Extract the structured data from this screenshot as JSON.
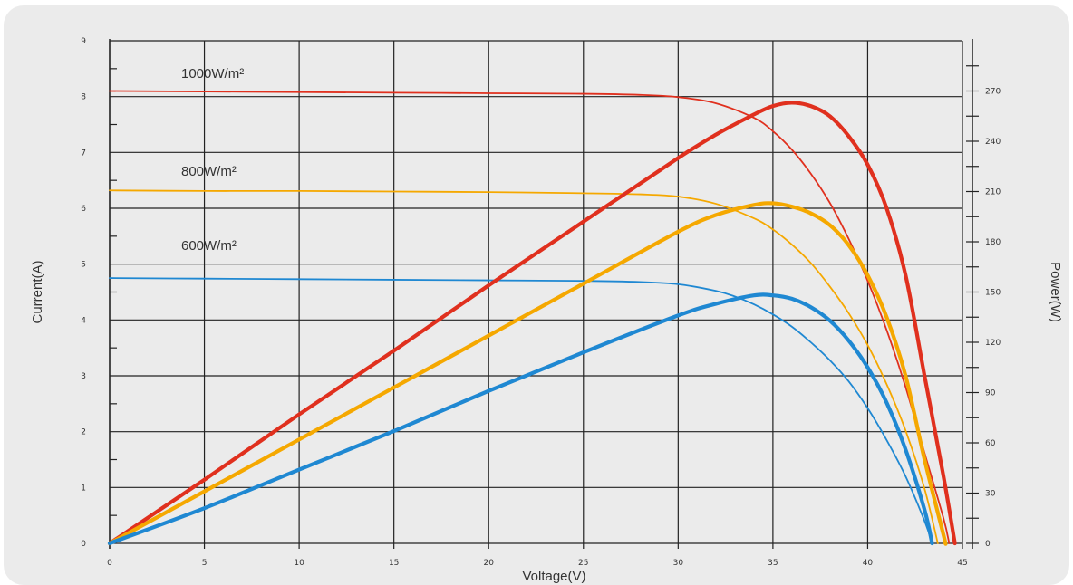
{
  "chart_data": {
    "type": "line",
    "title": "",
    "xlabel": "Voltage(V)",
    "ylabel": "Current(A)",
    "y2label": "Power(W)",
    "xlim": [
      0,
      45
    ],
    "ylim": [
      0,
      9
    ],
    "y2lim": [
      0,
      300
    ],
    "x_ticks": [
      0,
      5,
      10,
      15,
      20,
      25,
      30,
      35,
      40,
      45
    ],
    "y_ticks": [
      0,
      1,
      2,
      3,
      4,
      5,
      6,
      7,
      8,
      9
    ],
    "y2_ticks": [
      0,
      30,
      60,
      90,
      120,
      150,
      180,
      210,
      240,
      270
    ],
    "grid": true,
    "curve_labels": [
      "1000W/m²",
      "800W/m²",
      "600W/m²"
    ],
    "series": [
      {
        "irradiance": "1000W/m²",
        "kind": "current",
        "axis": "left",
        "color": "#e0301e",
        "points": [
          [
            0,
            8.1
          ],
          [
            5,
            8.09
          ],
          [
            10,
            8.08
          ],
          [
            15,
            8.07
          ],
          [
            20,
            8.06
          ],
          [
            25,
            8.05
          ],
          [
            28,
            8.03
          ],
          [
            30,
            7.99
          ],
          [
            32,
            7.88
          ],
          [
            34,
            7.62
          ],
          [
            35,
            7.38
          ],
          [
            36,
            7.05
          ],
          [
            37,
            6.62
          ],
          [
            38,
            6.1
          ],
          [
            39,
            5.45
          ],
          [
            40,
            4.7
          ],
          [
            41,
            3.82
          ],
          [
            42,
            2.8
          ],
          [
            43,
            1.62
          ],
          [
            44,
            0.45
          ],
          [
            44.3,
            0
          ]
        ]
      },
      {
        "irradiance": "1000W/m²",
        "kind": "power",
        "axis": "right",
        "color": "#e0301e",
        "points": [
          [
            0,
            0
          ],
          [
            5,
            38
          ],
          [
            10,
            77
          ],
          [
            15,
            115
          ],
          [
            20,
            154
          ],
          [
            25,
            192
          ],
          [
            30,
            230
          ],
          [
            32,
            244
          ],
          [
            34,
            256
          ],
          [
            35,
            261
          ],
          [
            36,
            263
          ],
          [
            37,
            261
          ],
          [
            38,
            255
          ],
          [
            39,
            243
          ],
          [
            40,
            226
          ],
          [
            41,
            200
          ],
          [
            42,
            160
          ],
          [
            43,
            100
          ],
          [
            44,
            40
          ],
          [
            44.6,
            0
          ]
        ]
      },
      {
        "irradiance": "800W/m²",
        "kind": "current",
        "axis": "left",
        "color": "#f5a800",
        "points": [
          [
            0,
            6.32
          ],
          [
            5,
            6.31
          ],
          [
            10,
            6.31
          ],
          [
            15,
            6.3
          ],
          [
            20,
            6.29
          ],
          [
            25,
            6.27
          ],
          [
            28,
            6.25
          ],
          [
            30,
            6.21
          ],
          [
            32,
            6.08
          ],
          [
            34,
            5.82
          ],
          [
            35,
            5.62
          ],
          [
            36,
            5.35
          ],
          [
            37,
            5.02
          ],
          [
            38,
            4.6
          ],
          [
            39,
            4.12
          ],
          [
            40,
            3.55
          ],
          [
            41,
            2.85
          ],
          [
            42,
            2.02
          ],
          [
            43,
            0.98
          ],
          [
            43.7,
            0
          ]
        ]
      },
      {
        "irradiance": "800W/m²",
        "kind": "power",
        "axis": "right",
        "color": "#f5a800",
        "points": [
          [
            0,
            0
          ],
          [
            5,
            31
          ],
          [
            10,
            62
          ],
          [
            15,
            93
          ],
          [
            20,
            124
          ],
          [
            25,
            155
          ],
          [
            30,
            186
          ],
          [
            32,
            196
          ],
          [
            34,
            202
          ],
          [
            35,
            203
          ],
          [
            36,
            201
          ],
          [
            37,
            197
          ],
          [
            38,
            190
          ],
          [
            39,
            178
          ],
          [
            40,
            160
          ],
          [
            41,
            135
          ],
          [
            42,
            100
          ],
          [
            43,
            50
          ],
          [
            44,
            5
          ],
          [
            44.1,
            0
          ]
        ]
      },
      {
        "irradiance": "600W/m²",
        "kind": "current",
        "axis": "left",
        "color": "#1f88d2",
        "points": [
          [
            0,
            4.75
          ],
          [
            5,
            4.74
          ],
          [
            10,
            4.73
          ],
          [
            15,
            4.72
          ],
          [
            20,
            4.71
          ],
          [
            25,
            4.7
          ],
          [
            28,
            4.68
          ],
          [
            30,
            4.64
          ],
          [
            32,
            4.52
          ],
          [
            33,
            4.42
          ],
          [
            34,
            4.28
          ],
          [
            35,
            4.1
          ],
          [
            36,
            3.88
          ],
          [
            37,
            3.6
          ],
          [
            38,
            3.28
          ],
          [
            39,
            2.9
          ],
          [
            40,
            2.42
          ],
          [
            41,
            1.85
          ],
          [
            42,
            1.2
          ],
          [
            43,
            0.4
          ],
          [
            43.4,
            0
          ]
        ]
      },
      {
        "irradiance": "600W/m²",
        "kind": "power",
        "axis": "right",
        "color": "#1f88d2",
        "points": [
          [
            0,
            0
          ],
          [
            5,
            21
          ],
          [
            10,
            44
          ],
          [
            15,
            67
          ],
          [
            20,
            91
          ],
          [
            25,
            114
          ],
          [
            30,
            136
          ],
          [
            32,
            143
          ],
          [
            34,
            148
          ],
          [
            35,
            148
          ],
          [
            36,
            146
          ],
          [
            37,
            141
          ],
          [
            38,
            133
          ],
          [
            39,
            121
          ],
          [
            40,
            105
          ],
          [
            41,
            84
          ],
          [
            42,
            56
          ],
          [
            43,
            20
          ],
          [
            43.4,
            0
          ]
        ]
      }
    ]
  }
}
